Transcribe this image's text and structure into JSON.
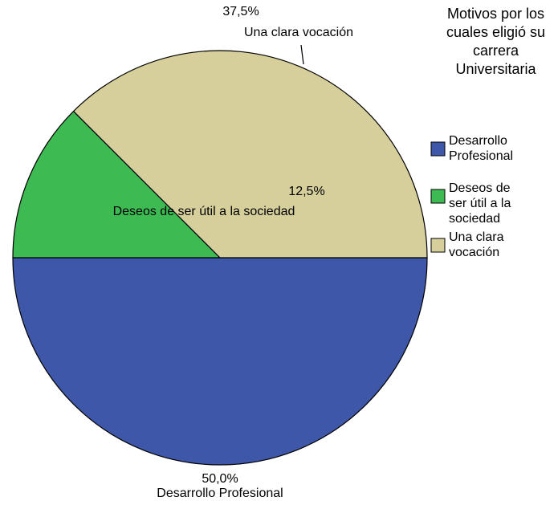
{
  "chart_data": {
    "type": "pie",
    "legend_title": "Motivos por los cuales eligió su carrera Universitaria",
    "categories": [
      "Desarrollo Profesional",
      "Deseos de ser útil a la sociedad",
      "Una clara vocación"
    ],
    "values": [
      50,
      12.5,
      37.5
    ],
    "value_labels": [
      "50,0%",
      "12,5%",
      "37,5%"
    ],
    "colors": [
      "#3e57a8",
      "#3dba52",
      "#d6cf9c"
    ],
    "legend": "right"
  }
}
